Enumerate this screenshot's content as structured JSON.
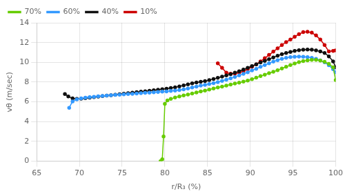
{
  "chart_data": {
    "type": "line",
    "xlabel": "r/R₃ (%)",
    "ylabel": "vθ (m/sec)",
    "xlim": [
      65,
      100
    ],
    "ylim": [
      0,
      14
    ],
    "xticks": [
      65,
      70,
      75,
      80,
      85,
      90,
      95,
      100
    ],
    "yticks": [
      0,
      2,
      4,
      6,
      8,
      10,
      12,
      14
    ],
    "grid": true,
    "legend": "upper left",
    "marker": "o",
    "series": [
      {
        "name": "70%",
        "color": "#66cc00",
        "x": [
          79.5,
          79.7,
          79.85,
          80.0,
          80.3,
          80.7,
          81.2,
          81.7,
          82.2,
          82.7,
          83.2,
          83.7,
          84.2,
          84.7,
          85.2,
          85.7,
          86.2,
          86.7,
          87.2,
          87.7,
          88.2,
          88.7,
          89.2,
          89.7,
          90.2,
          90.7,
          91.2,
          91.7,
          92.2,
          92.7,
          93.2,
          93.7,
          94.2,
          94.7,
          95.2,
          95.7,
          96.2,
          96.7,
          97.2,
          97.7,
          98.2,
          98.7,
          99.2,
          99.7,
          100.0
        ],
        "values": [
          0.0,
          0.2,
          2.5,
          5.8,
          6.15,
          6.3,
          6.45,
          6.55,
          6.65,
          6.75,
          6.85,
          6.95,
          7.05,
          7.15,
          7.25,
          7.35,
          7.45,
          7.55,
          7.65,
          7.75,
          7.85,
          7.95,
          8.05,
          8.15,
          8.3,
          8.45,
          8.6,
          8.75,
          8.9,
          9.05,
          9.2,
          9.38,
          9.55,
          9.72,
          9.88,
          10.02,
          10.12,
          10.2,
          10.25,
          10.25,
          10.18,
          10.05,
          9.85,
          9.5,
          8.2
        ]
      },
      {
        "name": "60%",
        "color": "#3399ff",
        "x": [
          68.8,
          69.2,
          69.7,
          70.2,
          70.7,
          71.2,
          71.7,
          72.2,
          72.7,
          73.2,
          73.7,
          74.2,
          74.7,
          75.2,
          75.7,
          76.2,
          76.7,
          77.2,
          77.7,
          78.2,
          78.7,
          79.2,
          79.7,
          80.2,
          80.7,
          81.2,
          81.7,
          82.2,
          82.7,
          83.2,
          83.7,
          84.2,
          84.7,
          85.2,
          85.7,
          86.2,
          86.7,
          87.2,
          87.7,
          88.2,
          88.7,
          89.2,
          89.7,
          90.2,
          90.7,
          91.2,
          91.7,
          92.2,
          92.7,
          93.2,
          93.7,
          94.2,
          94.7,
          95.2,
          95.7,
          96.2,
          96.7,
          97.2,
          97.7,
          98.2,
          98.7,
          99.2,
          99.7,
          100.0
        ],
        "values": [
          5.4,
          6.05,
          6.25,
          6.35,
          6.42,
          6.48,
          6.52,
          6.56,
          6.6,
          6.63,
          6.67,
          6.7,
          6.73,
          6.76,
          6.79,
          6.82,
          6.85,
          6.88,
          6.91,
          6.94,
          6.97,
          7.0,
          7.03,
          7.06,
          7.1,
          7.15,
          7.2,
          7.27,
          7.35,
          7.45,
          7.55,
          7.65,
          7.72,
          7.8,
          7.9,
          8.0,
          8.12,
          8.25,
          8.38,
          8.52,
          8.67,
          8.83,
          9.0,
          9.18,
          9.35,
          9.55,
          9.72,
          9.9,
          10.08,
          10.22,
          10.35,
          10.45,
          10.52,
          10.56,
          10.58,
          10.57,
          10.52,
          10.45,
          10.35,
          10.2,
          10.0,
          9.7,
          9.3,
          9.0
        ]
      },
      {
        "name": "40%",
        "color": "#111111",
        "x": [
          68.3,
          68.7,
          69.2,
          69.7,
          70.2,
          70.7,
          71.2,
          71.7,
          72.2,
          72.7,
          73.2,
          73.7,
          74.2,
          74.7,
          75.2,
          75.7,
          76.2,
          76.7,
          77.2,
          77.7,
          78.2,
          78.7,
          79.2,
          79.7,
          80.2,
          80.7,
          81.2,
          81.7,
          82.2,
          82.7,
          83.2,
          83.7,
          84.2,
          84.7,
          85.2,
          85.7,
          86.2,
          86.7,
          87.2,
          87.7,
          88.2,
          88.7,
          89.2,
          89.7,
          90.2,
          90.7,
          91.2,
          91.7,
          92.2,
          92.7,
          93.2,
          93.7,
          94.2,
          94.7,
          95.2,
          95.7,
          96.2,
          96.7,
          97.2,
          97.7,
          98.2,
          98.7,
          99.2,
          99.7,
          100.0
        ],
        "values": [
          6.8,
          6.55,
          6.35,
          6.3,
          6.33,
          6.38,
          6.43,
          6.48,
          6.53,
          6.58,
          6.63,
          6.68,
          6.73,
          6.78,
          6.83,
          6.88,
          6.93,
          6.98,
          7.03,
          7.08,
          7.13,
          7.18,
          7.23,
          7.28,
          7.33,
          7.4,
          7.48,
          7.57,
          7.67,
          7.77,
          7.87,
          7.96,
          8.03,
          8.1,
          8.2,
          8.32,
          8.43,
          8.55,
          8.67,
          8.8,
          8.95,
          9.1,
          9.27,
          9.45,
          9.62,
          9.8,
          9.98,
          10.15,
          10.32,
          10.5,
          10.67,
          10.82,
          10.95,
          11.05,
          11.15,
          11.22,
          11.28,
          11.3,
          11.28,
          11.2,
          11.1,
          10.95,
          10.6,
          10.1,
          9.5
        ]
      },
      {
        "name": "10%",
        "color": "#cc0000",
        "x": [
          86.2,
          86.7,
          87.2,
          87.7,
          88.2,
          88.7,
          89.2,
          89.7,
          90.2,
          90.7,
          91.2,
          91.7,
          92.2,
          92.7,
          93.2,
          93.7,
          94.2,
          94.7,
          95.2,
          95.7,
          96.2,
          96.7,
          97.2,
          97.7,
          98.2,
          98.7,
          99.2,
          99.7,
          100.0
        ],
        "values": [
          9.9,
          9.45,
          8.95,
          8.85,
          8.85,
          8.95,
          9.1,
          9.3,
          9.55,
          9.8,
          10.1,
          10.42,
          10.75,
          11.08,
          11.42,
          11.75,
          12.05,
          12.3,
          12.58,
          12.85,
          13.05,
          13.1,
          13.0,
          12.72,
          12.3,
          11.75,
          11.1,
          11.15,
          11.2
        ]
      }
    ]
  }
}
